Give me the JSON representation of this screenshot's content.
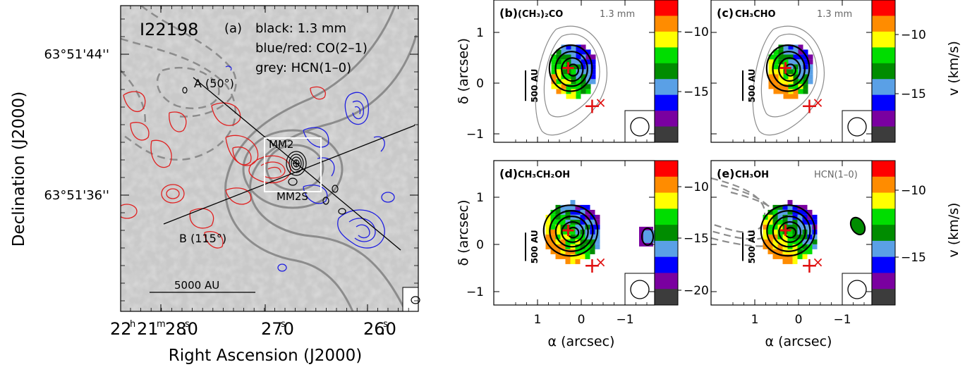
{
  "chart_data": [
    {
      "type": "contour_map",
      "panel": "(a)",
      "source": "I22198",
      "legend": [
        "black: 1.3 mm",
        "blue/red: CO(2–1)",
        "grey: HCN(1–0)"
      ],
      "xlabel": "Right Ascension (J2000)",
      "ylabel": "Declination (J2000)",
      "x_ticks": [
        {
          "h": "22",
          "m": "21",
          "s": "28",
          "f": ".0"
        },
        {
          "h": "",
          "m": "",
          "s": "27",
          "f": ".0"
        },
        {
          "h": "",
          "m": "",
          "s": "26",
          "f": ".0"
        }
      ],
      "y_ticks": [
        "63°51'44''",
        "63°51'36''"
      ],
      "cuts": [
        {
          "label": "A (50°)"
        },
        {
          "label": "B (115°)"
        }
      ],
      "sources": [
        "MM2",
        "MM2S"
      ],
      "scalebar": "5000 AU"
    },
    {
      "type": "velocity_map",
      "panel": "(b)",
      "molecule": "(CH₃)₂CO",
      "note": "1.3 mm",
      "x_ticks": [
        "1",
        "0",
        "−1"
      ],
      "y_ticks": [
        "1",
        "0",
        "−1"
      ],
      "colorbar_ticks": [
        "−10",
        "−15"
      ],
      "scalebar": "500 AU"
    },
    {
      "type": "velocity_map",
      "panel": "(c)",
      "molecule": "CH₃CHO",
      "note": "1.3 mm",
      "x_ticks": [
        "1",
        "0",
        "−1"
      ],
      "y_ticks": [
        "1",
        "0",
        "−1"
      ],
      "colorbar_ticks": [
        "−10",
        "−15"
      ],
      "scalebar": "500 AU"
    },
    {
      "type": "velocity_map",
      "panel": "(d)",
      "molecule": "CH₃CH₂OH",
      "note": "",
      "x_ticks": [
        "1",
        "0",
        "−1"
      ],
      "y_ticks": [
        "1",
        "0",
        "−1"
      ],
      "colorbar_ticks": [
        "−10",
        "−15",
        "−20"
      ],
      "scalebar": "500 AU"
    },
    {
      "type": "velocity_map",
      "panel": "(e)",
      "molecule": "CH₃OH",
      "note": "HCN(1–0)",
      "x_ticks": [
        "1",
        "0",
        "−1"
      ],
      "y_ticks": [
        "1",
        "0",
        "−1"
      ],
      "colorbar_ticks": [
        "−10",
        "−15"
      ],
      "scalebar": "500 AU"
    }
  ],
  "axis_labels": {
    "delta": "δ (arcsec)",
    "alpha": "α (arcsec)",
    "velocity": "v (km/s)"
  },
  "colors": {
    "colorbar": [
      "#ff0000",
      "#ff8c00",
      "#ffff00",
      "#00dd00",
      "#008c00",
      "#5aa0e6",
      "#0000ff",
      "#7a00a0",
      "#3c3c3c"
    ],
    "co_red": "#e02020",
    "co_blue": "#2020e0",
    "hcn_grey": "#8c8c8c",
    "marker": "#e01010"
  }
}
